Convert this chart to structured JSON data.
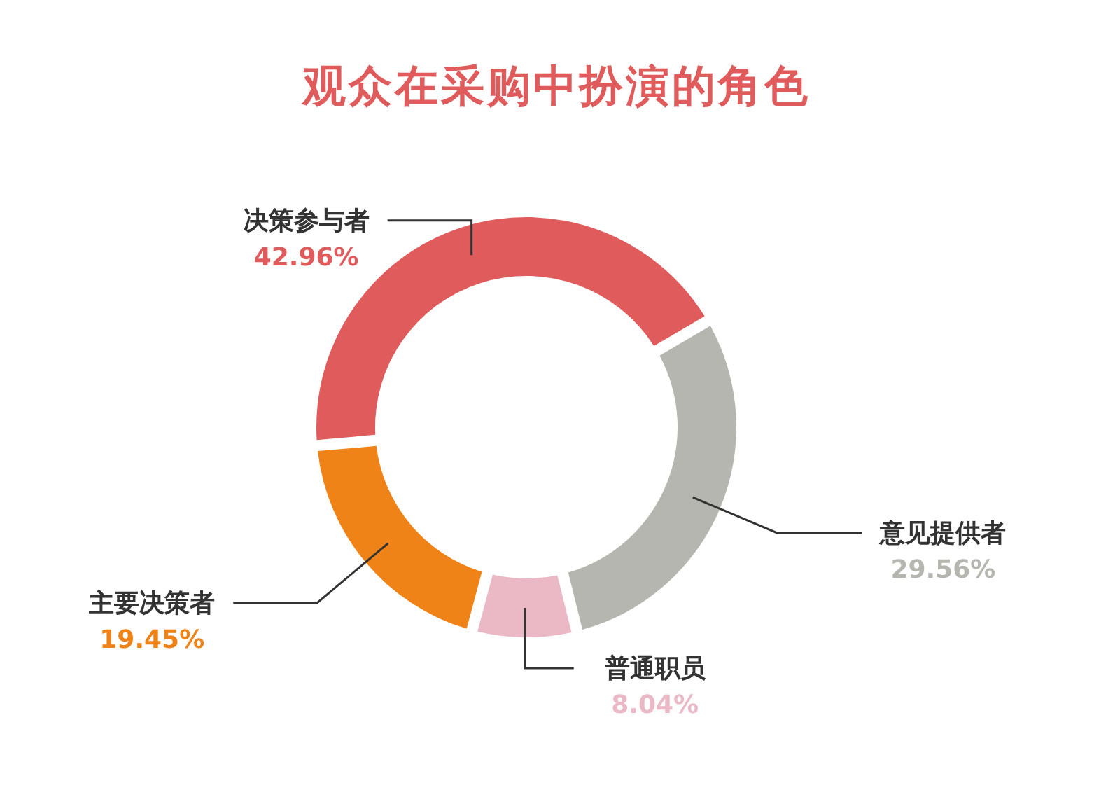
{
  "chart_data": {
    "type": "donut",
    "title": "观众在采购中扮演的角色",
    "categories": [
      "决策参与者",
      "意见提供者",
      "普通职员",
      "主要决策者"
    ],
    "values": [
      42.96,
      29.56,
      8.04,
      19.45
    ],
    "colors": [
      "#e05c5c",
      "#b6b6b1",
      "#ebb8c6",
      "#ef8317"
    ],
    "value_labels": [
      "42.96%",
      "29.56%",
      "8.04%",
      "19.45%"
    ]
  }
}
